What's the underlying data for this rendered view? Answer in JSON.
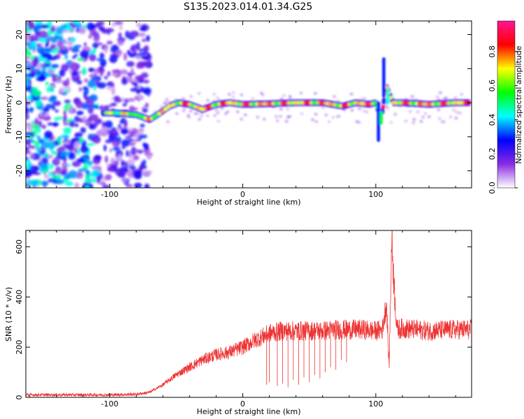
{
  "title": "S135.2023.014.01.34.G25",
  "chart_data": [
    {
      "type": "heatmap",
      "xlabel": "Height of straight line (km)",
      "ylabel": "Frequency (Hz)",
      "xlim": [
        -163,
        172
      ],
      "ylim": [
        -25,
        24
      ],
      "x_ticks": [
        -100,
        0,
        100
      ],
      "y_ticks": [
        -20,
        -10,
        0,
        10,
        20
      ],
      "colorbar": {
        "label": "Normalized spectral amplitude",
        "range": [
          0,
          0.98
        ],
        "ticks": [
          0.0,
          0.2,
          0.4,
          0.6,
          0.8
        ],
        "colors": [
          "#ffffff",
          "#8a2be2",
          "#0000ff",
          "#00ffff",
          "#00ff00",
          "#ffff00",
          "#ff0000",
          "#ff1493"
        ]
      },
      "ridge": {
        "x": [
          -105,
          -95,
          -80,
          -70,
          -62,
          -55,
          -48,
          -40,
          -30,
          -20,
          -10,
          0,
          20,
          40,
          60,
          75,
          85,
          95,
          100,
          104,
          108,
          113,
          120,
          140,
          160,
          170
        ],
        "frequency": [
          -3,
          -3,
          -3.5,
          -5,
          -3,
          -1,
          0,
          -0.5,
          -2,
          -0.5,
          0,
          -0.5,
          -0.3,
          0,
          0,
          -1,
          0,
          -0.5,
          0,
          -5,
          5,
          0,
          0,
          -0.5,
          0,
          0
        ]
      }
    },
    {
      "type": "line",
      "xlabel": "Height of straight line (km)",
      "ylabel": "SNR (10 * v/v)",
      "xlim": [
        -163,
        172
      ],
      "ylim": [
        0,
        665
      ],
      "x_ticks": [
        -100,
        0,
        100
      ],
      "y_ticks": [
        0,
        200,
        400,
        600
      ],
      "series": [
        {
          "color": "#ee3333",
          "x": [
            -163,
            -130,
            -100,
            -80,
            -70,
            -60,
            -50,
            -40,
            -30,
            -20,
            -10,
            0,
            10,
            20,
            30,
            40,
            50,
            60,
            70,
            80,
            90,
            100,
            105,
            108,
            110,
            112,
            114,
            116,
            120,
            140,
            160,
            172
          ],
          "values": [
            10,
            10,
            10,
            12,
            20,
            50,
            90,
            120,
            150,
            170,
            180,
            200,
            230,
            255,
            265,
            265,
            265,
            265,
            270,
            270,
            270,
            265,
            270,
            380,
            120,
            640,
            420,
            270,
            275,
            265,
            270,
            270
          ]
        }
      ],
      "dropouts": [
        {
          "x": 18,
          "value": 50
        },
        {
          "x": 20,
          "value": 60
        },
        {
          "x": 26,
          "value": 45
        },
        {
          "x": 30,
          "value": 55
        },
        {
          "x": 34,
          "value": 40
        },
        {
          "x": 38,
          "value": 70
        },
        {
          "x": 42,
          "value": 50
        },
        {
          "x": 46,
          "value": 80
        },
        {
          "x": 50,
          "value": 60
        },
        {
          "x": 54,
          "value": 90
        },
        {
          "x": 58,
          "value": 75
        },
        {
          "x": 62,
          "value": 100
        },
        {
          "x": 66,
          "value": 120
        },
        {
          "x": 70,
          "value": 110
        },
        {
          "x": 74,
          "value": 150
        },
        {
          "x": 78,
          "value": 140
        }
      ]
    }
  ]
}
